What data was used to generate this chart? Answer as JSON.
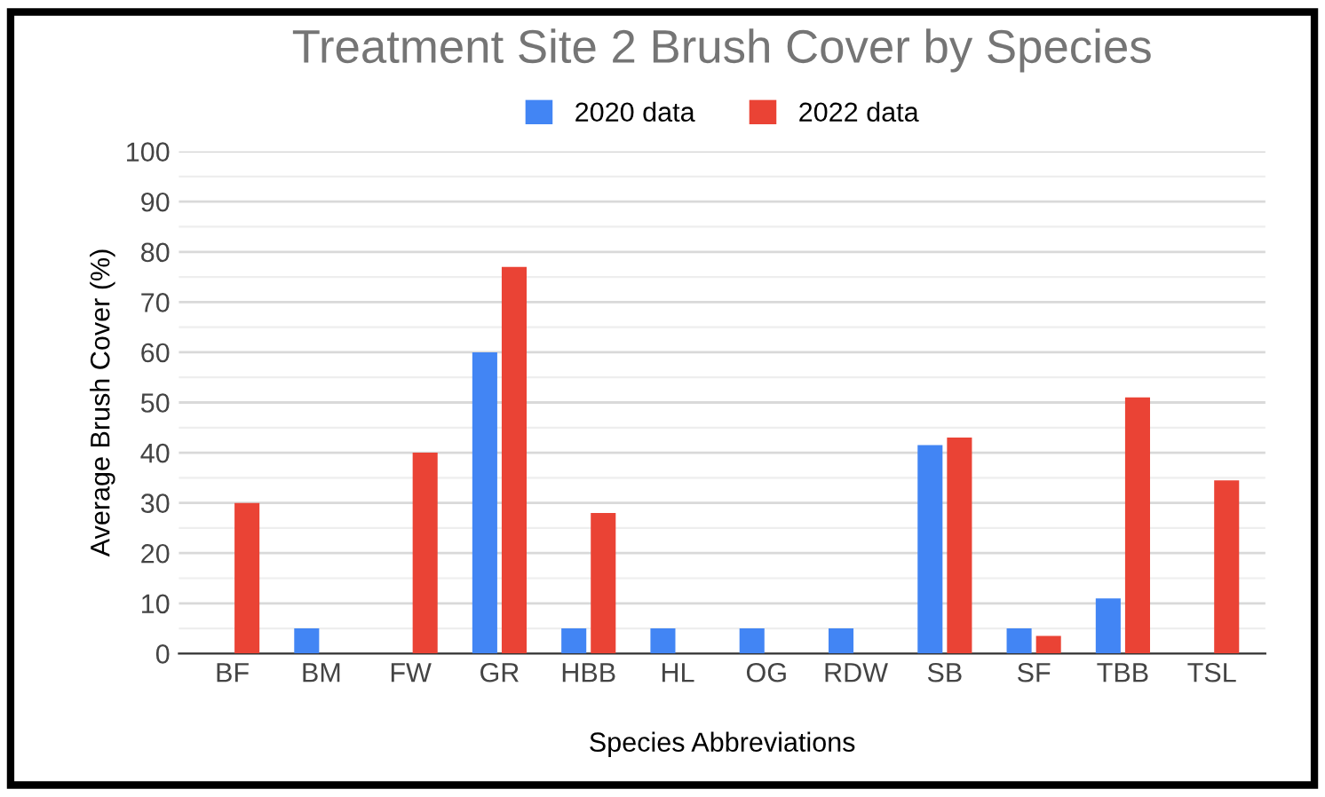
{
  "chart_data": {
    "type": "bar",
    "title": "Treatment Site 2 Brush Cover by Species",
    "xlabel": "Species Abbreviations",
    "ylabel": "Average Brush Cover (%)",
    "categories": [
      "BF",
      "BM",
      "FW",
      "GR",
      "HBB",
      "HL",
      "OG",
      "RDW",
      "SB",
      "SF",
      "TBB",
      "TSL"
    ],
    "series": [
      {
        "name": "2020 data",
        "color": "#4285f4",
        "values": [
          null,
          5,
          null,
          60,
          5,
          5,
          5,
          5,
          41.5,
          5,
          11,
          null
        ]
      },
      {
        "name": "2022 data",
        "color": "#ea4335",
        "values": [
          30,
          null,
          40,
          77,
          28,
          null,
          null,
          null,
          43,
          3.5,
          51,
          34.5
        ]
      }
    ],
    "ylim": [
      0,
      100
    ],
    "yticks": [
      0,
      10,
      20,
      30,
      40,
      50,
      60,
      70,
      80,
      90,
      100
    ],
    "grid": "y",
    "legend": "top"
  }
}
